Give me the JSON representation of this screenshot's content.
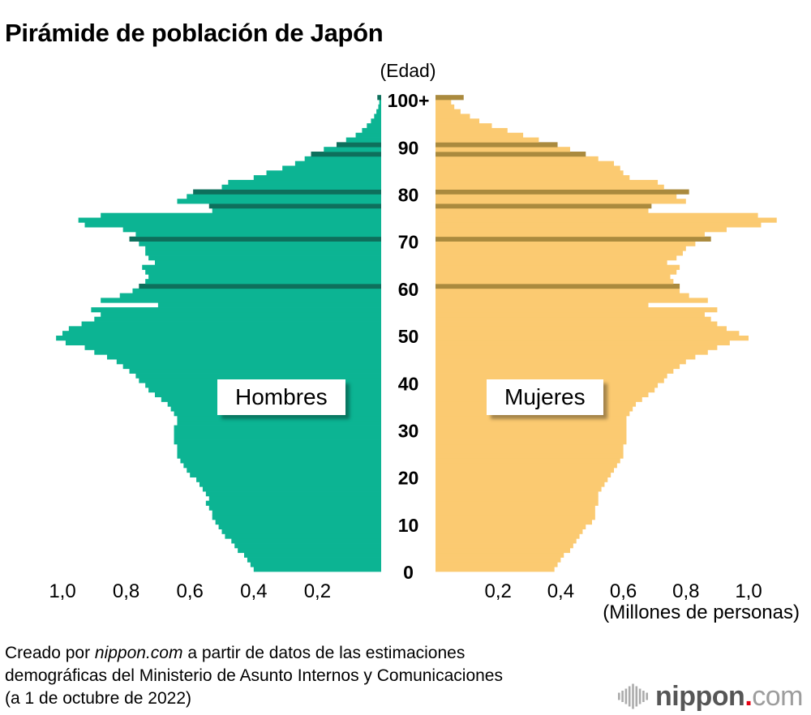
{
  "title": "Pirámide de población de Japón",
  "labels": {
    "edad": "(Edad)",
    "millones": "(Millones de personas)",
    "hombres": "Hombres",
    "mujeres": "Mujeres"
  },
  "footnote": {
    "line1_prefix": "Creado por ",
    "line1_brand": "nippon.com",
    "line1_suffix": " a partir de datos de las estimaciones",
    "line2": "demográficas del Ministerio de Asunto Internos y Comunicaciones",
    "line3": "(a 1 de octubre de 2022)"
  },
  "logo": {
    "icon": "soundwave-icon",
    "bold": "nippon",
    "dot": ".",
    "light": "com",
    "bold_color": "#565656",
    "dot_color": "#e60012",
    "light_color": "#9d9d9d",
    "icon_color": "#ababab"
  },
  "chart_data": {
    "type": "bar",
    "subtype": "population-pyramid",
    "title": "Pirámide de población de Japón",
    "age_axis_title": "(Edad)",
    "x_axis_unit": "(Millones de personas)",
    "unit": "millones de personas",
    "grid": false,
    "x_tick_values": [
      0.2,
      0.4,
      0.6,
      0.8,
      1.0
    ],
    "x_tick_labels": [
      "0,2",
      "0,4",
      "0,6",
      "0,8",
      "1,0"
    ],
    "x_max": 1.15,
    "age_tick_ages": [
      0,
      10,
      20,
      30,
      40,
      50,
      60,
      70,
      80,
      90,
      100
    ],
    "age_tick_labels": [
      "0",
      "10",
      "20",
      "30",
      "40",
      "50",
      "60",
      "70",
      "80",
      "90",
      "100+"
    ],
    "highlight_ages": [
      60,
      70,
      77,
      80,
      88,
      90,
      100
    ],
    "series": [
      {
        "name": "Hombres",
        "side": "left",
        "color": "#0cb493",
        "highlight_color": "#0e6f5c",
        "values": [
          0.4,
          0.41,
          0.42,
          0.43,
          0.45,
          0.46,
          0.47,
          0.49,
          0.5,
          0.51,
          0.52,
          0.53,
          0.53,
          0.54,
          0.55,
          0.54,
          0.55,
          0.56,
          0.57,
          0.58,
          0.6,
          0.61,
          0.62,
          0.63,
          0.64,
          0.64,
          0.64,
          0.65,
          0.65,
          0.65,
          0.65,
          0.64,
          0.64,
          0.65,
          0.66,
          0.67,
          0.69,
          0.71,
          0.73,
          0.74,
          0.76,
          0.77,
          0.79,
          0.81,
          0.83,
          0.86,
          0.9,
          0.93,
          0.99,
          1.02,
          1.0,
          0.98,
          0.94,
          0.9,
          0.88,
          0.91,
          0.7,
          0.88,
          0.82,
          0.78,
          0.76,
          0.74,
          0.73,
          0.74,
          0.75,
          0.71,
          0.73,
          0.74,
          0.74,
          0.76,
          0.79,
          0.77,
          0.81,
          0.93,
          0.95,
          0.88,
          0.53,
          0.54,
          0.64,
          0.61,
          0.59,
          0.5,
          0.48,
          0.4,
          0.36,
          0.31,
          0.27,
          0.24,
          0.22,
          0.18,
          0.14,
          0.11,
          0.08,
          0.06,
          0.045,
          0.032,
          0.022,
          0.015,
          0.009,
          0.006,
          0.012
        ]
      },
      {
        "name": "Mujeres",
        "side": "right",
        "color": "#fbca71",
        "highlight_color": "#aa8a3e",
        "values": [
          0.38,
          0.39,
          0.4,
          0.41,
          0.43,
          0.44,
          0.45,
          0.46,
          0.47,
          0.48,
          0.5,
          0.51,
          0.51,
          0.51,
          0.52,
          0.52,
          0.52,
          0.53,
          0.54,
          0.55,
          0.56,
          0.57,
          0.58,
          0.59,
          0.6,
          0.6,
          0.6,
          0.61,
          0.61,
          0.61,
          0.61,
          0.61,
          0.61,
          0.62,
          0.63,
          0.64,
          0.66,
          0.68,
          0.7,
          0.71,
          0.73,
          0.74,
          0.76,
          0.78,
          0.8,
          0.83,
          0.87,
          0.9,
          0.94,
          1.0,
          0.97,
          0.93,
          0.9,
          0.88,
          0.86,
          0.9,
          0.68,
          0.87,
          0.81,
          0.78,
          0.78,
          0.76,
          0.75,
          0.77,
          0.78,
          0.74,
          0.77,
          0.79,
          0.8,
          0.83,
          0.88,
          0.86,
          0.93,
          1.04,
          1.09,
          1.03,
          0.68,
          0.69,
          0.8,
          0.77,
          0.81,
          0.73,
          0.71,
          0.62,
          0.6,
          0.59,
          0.57,
          0.52,
          0.48,
          0.43,
          0.39,
          0.33,
          0.28,
          0.23,
          0.18,
          0.14,
          0.11,
          0.08,
          0.06,
          0.05,
          0.09
        ]
      }
    ],
    "source_note": "Creado por nippon.com a partir de datos de las estimaciones demográficas del Ministerio de Asunto Internos y Comunicaciones (a 1 de octubre de 2022)"
  }
}
